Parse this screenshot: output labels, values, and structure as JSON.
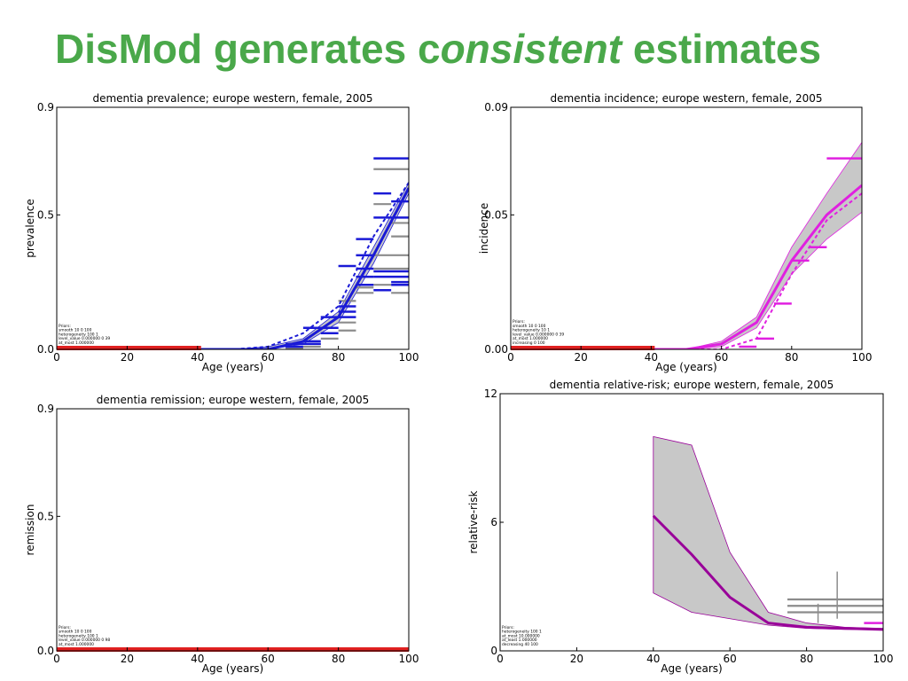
{
  "slide": {
    "title_pre": "DisMod generates c",
    "title_em": "onsistent",
    "title_post": " estimates"
  },
  "colors": {
    "title_green": "#4aa84a",
    "prevalence_blue": "#1a1ad6",
    "incidence_magenta": "#e020e0",
    "relative_risk_purple": "#990099",
    "observed_gray": "#8c8c8c",
    "band_gray": "#c8c8c8",
    "bar_red": "#e02020"
  },
  "chart_data": [
    {
      "type": "line",
      "title": "dementia prevalence; europe western, female, 2005",
      "xlabel": "Age (years)",
      "ylabel": "prevalence",
      "xlim": [
        0,
        100
      ],
      "ylim": [
        0,
        0.9
      ],
      "xticks": [
        "0",
        "20",
        "40",
        "60",
        "80",
        "100"
      ],
      "yticks": [
        "0.0",
        "0.5",
        "0.9"
      ],
      "ytick_values": [
        0,
        0.5,
        0.9
      ],
      "color": "#1a1ad6",
      "priors": [
        "Priors:",
        "smooth 10 0 100",
        "heterogeneity 100 1",
        "level_value 0.000000 0 39",
        "at_most 1.000000"
      ],
      "red_bar": [
        0,
        41
      ],
      "x": [
        40,
        50,
        60,
        70,
        80,
        90,
        100
      ],
      "fit_line": [
        0,
        0,
        0,
        0.03,
        0.12,
        0.35,
        0.6
      ],
      "dashed_line": [
        0,
        0,
        0.01,
        0.06,
        0.16,
        0.42,
        0.62
      ],
      "band_upper": [
        0,
        0,
        0.01,
        0.04,
        0.14,
        0.38,
        0.62
      ],
      "band_lower": [
        0,
        0,
        0,
        0.02,
        0.1,
        0.32,
        0.58
      ],
      "observed_blue": [
        [
          90,
          100,
          0.71
        ],
        [
          95,
          100,
          0.55
        ],
        [
          90,
          95,
          0.58
        ],
        [
          90,
          100,
          0.49
        ],
        [
          85,
          90,
          0.41
        ],
        [
          80,
          85,
          0.31
        ],
        [
          85,
          90,
          0.35
        ],
        [
          85,
          90,
          0.3
        ],
        [
          90,
          100,
          0.29
        ],
        [
          85,
          90,
          0.27
        ],
        [
          95,
          100,
          0.25
        ],
        [
          95,
          100,
          0.24
        ],
        [
          90,
          95,
          0.22
        ],
        [
          75,
          80,
          0.12
        ],
        [
          75,
          80,
          0.08
        ],
        [
          75,
          80,
          0.06
        ],
        [
          80,
          85,
          0.16
        ],
        [
          80,
          85,
          0.14
        ],
        [
          70,
          75,
          0.03
        ],
        [
          65,
          70,
          0.01
        ],
        [
          65,
          75,
          0.02
        ],
        [
          80,
          85,
          0.12
        ],
        [
          85,
          90,
          0.24
        ],
        [
          90,
          100,
          0.27
        ],
        [
          70,
          80,
          0.08
        ]
      ],
      "observed_gray": [
        [
          90,
          100,
          0.67
        ],
        [
          90,
          95,
          0.54
        ],
        [
          95,
          100,
          0.47
        ],
        [
          90,
          100,
          0.35
        ],
        [
          90,
          100,
          0.3
        ],
        [
          90,
          95,
          0.24
        ],
        [
          95,
          100,
          0.21
        ],
        [
          85,
          90,
          0.21
        ],
        [
          85,
          90,
          0.27
        ],
        [
          80,
          85,
          0.1
        ],
        [
          80,
          85,
          0.18
        ],
        [
          75,
          80,
          0.04
        ],
        [
          70,
          75,
          0.01
        ],
        [
          65,
          70,
          0.005
        ],
        [
          85,
          90,
          0.23
        ],
        [
          70,
          75,
          0.02
        ],
        [
          80,
          85,
          0.07
        ],
        [
          95,
          100,
          0.42
        ]
      ]
    },
    {
      "type": "line",
      "title": "dementia incidence; europe western, female, 2005",
      "xlabel": "Age (years)",
      "ylabel": "incidence",
      "xlim": [
        0,
        100
      ],
      "ylim": [
        0,
        0.09
      ],
      "xticks": [
        "0",
        "20",
        "40",
        "60",
        "80",
        "100"
      ],
      "yticks": [
        "0.00",
        "0.05",
        "0.09"
      ],
      "ytick_values": [
        0,
        0.05,
        0.09
      ],
      "color": "#e020e0",
      "priors": [
        "Priors:",
        "smooth 10 0 100",
        "heterogeneity 10 1",
        "level_value 0.000000 0 39",
        "at_most 1.000000",
        "increasing 0 100"
      ],
      "red_bar": [
        0,
        41
      ],
      "x": [
        40,
        50,
        60,
        70,
        80,
        90,
        100
      ],
      "fit_line": [
        0,
        0,
        0.002,
        0.01,
        0.033,
        0.05,
        0.061
      ],
      "dashed_line": [
        0,
        0,
        0,
        0.004,
        0.028,
        0.048,
        0.058
      ],
      "band_upper": [
        0,
        0,
        0.003,
        0.012,
        0.038,
        0.058,
        0.077
      ],
      "band_lower": [
        0,
        0,
        0.001,
        0.008,
        0.028,
        0.041,
        0.051
      ],
      "observed_magenta": [
        [
          90,
          100,
          0.071
        ],
        [
          85,
          90,
          0.038
        ],
        [
          80,
          85,
          0.033
        ],
        [
          75,
          80,
          0.017
        ],
        [
          70,
          75,
          0.004
        ],
        [
          65,
          70,
          0.001
        ]
      ]
    },
    {
      "type": "line",
      "title": "dementia remission; europe western, female, 2005",
      "xlabel": "Age (years)",
      "ylabel": "remission",
      "xlim": [
        0,
        100
      ],
      "ylim": [
        0,
        0.9
      ],
      "xticks": [
        "0",
        "20",
        "40",
        "60",
        "80",
        "100"
      ],
      "yticks": [
        "0.0",
        "0.5",
        "0.9"
      ],
      "ytick_values": [
        0,
        0.5,
        0.9
      ],
      "color": "#1a1ad6",
      "priors": [
        "Priors:",
        "smooth 10 0 100",
        "heterogeneity 100 1",
        "level_value 0.000000 0 98",
        "at_most 1.000000"
      ],
      "red_bar": [
        0,
        100
      ]
    },
    {
      "type": "line",
      "title": "dementia relative-risk; europe western, female, 2005",
      "xlabel": "Age (years)",
      "ylabel": "relative-risk",
      "xlim": [
        0,
        100
      ],
      "ylim": [
        0,
        12
      ],
      "xticks": [
        "0",
        "20",
        "40",
        "60",
        "80",
        "100"
      ],
      "yticks": [
        "0",
        "6",
        "12"
      ],
      "ytick_values": [
        0,
        6,
        12
      ],
      "color": "#990099",
      "priors": [
        "Priors:",
        "heterogeneity 100 1",
        "at_most 10.000000",
        "at_least 1.000000",
        "decreasing 40 100"
      ],
      "x": [
        40,
        50,
        60,
        70,
        80,
        90,
        100
      ],
      "fit_line": [
        6.3,
        4.5,
        2.5,
        1.3,
        1.1,
        1.05,
        1.0
      ],
      "band_upper": [
        10.0,
        9.6,
        4.6,
        1.8,
        1.3,
        1.1,
        1.05
      ],
      "band_lower": [
        2.7,
        1.8,
        1.5,
        1.2,
        1.05,
        1.0,
        1.0
      ],
      "observed_gray": [
        [
          75,
          100,
          2.4
        ],
        [
          75,
          100,
          2.1
        ],
        [
          75,
          100,
          1.8
        ]
      ],
      "observed_gray_vertical": [
        [
          83,
          1.3,
          2.2
        ],
        [
          88,
          1.5,
          3.7
        ]
      ],
      "observed_magenta": [
        [
          95,
          100,
          1.3
        ]
      ]
    }
  ]
}
